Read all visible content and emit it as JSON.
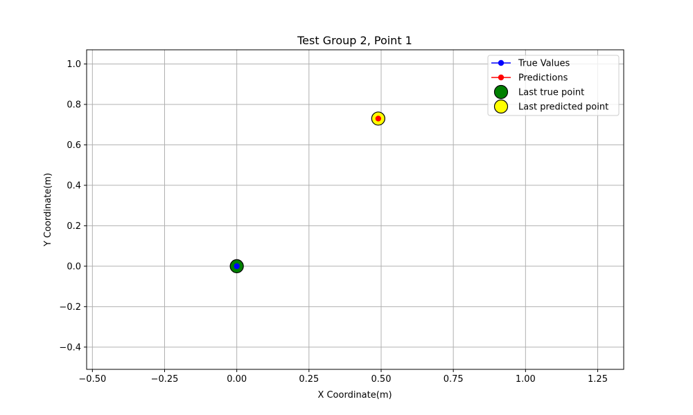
{
  "chart_data": {
    "type": "scatter",
    "title": "Test Group 2, Point 1",
    "xlabel": "X Coordinate(m)",
    "ylabel": "Y Coordinate(m)",
    "xlim": [
      -0.52,
      1.34
    ],
    "ylim": [
      -0.51,
      1.07
    ],
    "xticks": [
      -0.5,
      -0.25,
      0.0,
      0.25,
      0.5,
      0.75,
      1.0,
      1.25
    ],
    "xtick_labels": [
      "−0.50",
      "−0.25",
      "0.00",
      "0.25",
      "0.50",
      "0.75",
      "1.00",
      "1.25"
    ],
    "yticks": [
      -0.4,
      -0.2,
      0.0,
      0.2,
      0.4,
      0.6,
      0.8,
      1.0
    ],
    "ytick_labels": [
      "−0.4",
      "−0.2",
      "0.0",
      "0.2",
      "0.4",
      "0.6",
      "0.8",
      "1.0"
    ],
    "grid": true,
    "legend_position": "top-right",
    "series": [
      {
        "name": "True Values",
        "kind": "line-marker",
        "color": "#0000ff",
        "points": [
          [
            0.0,
            0.0
          ]
        ]
      },
      {
        "name": "Predictions",
        "kind": "line-marker",
        "color": "#ff0000",
        "points": [
          [
            0.49,
            0.73
          ]
        ]
      },
      {
        "name": "Last true point",
        "kind": "scatter",
        "color": "#008000",
        "edge": "#000000",
        "points": [
          [
            0.0,
            0.0
          ]
        ]
      },
      {
        "name": "Last predicted point",
        "kind": "scatter",
        "color": "#ffff00",
        "edge": "#000000",
        "points": [
          [
            0.49,
            0.73
          ]
        ]
      }
    ]
  }
}
